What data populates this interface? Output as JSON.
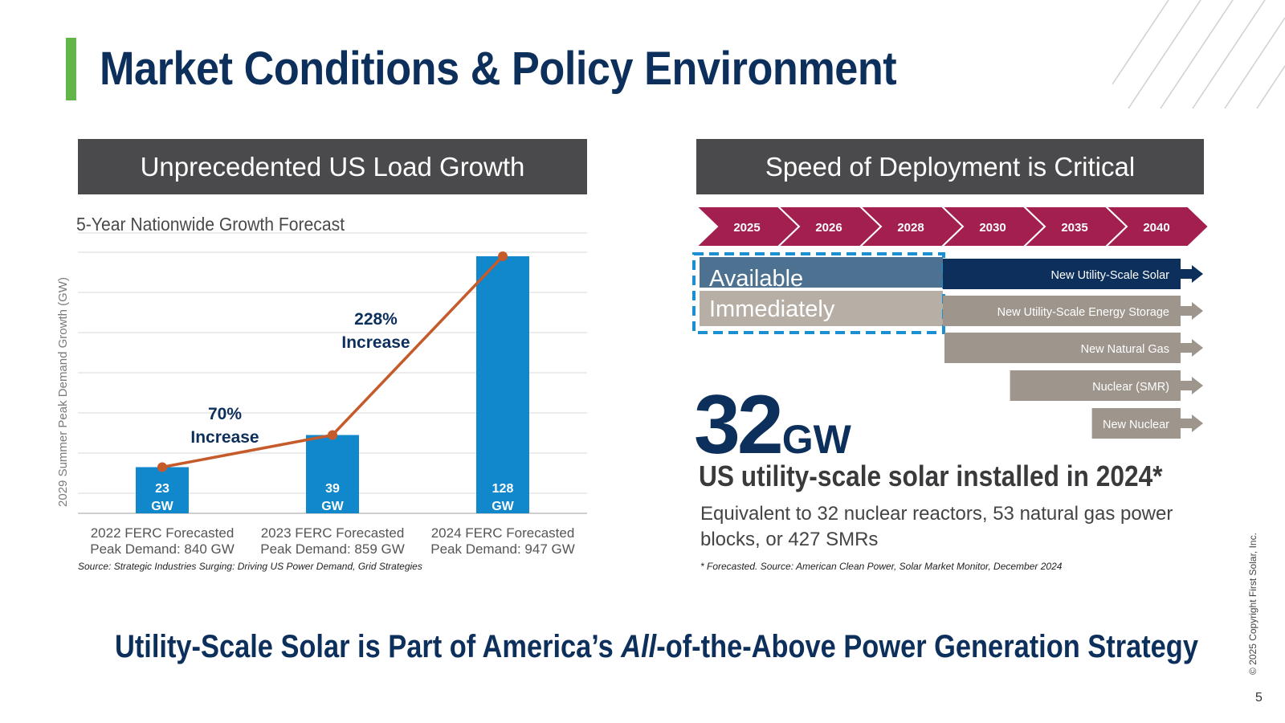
{
  "slide": {
    "title": "Market Conditions & Policy Environment",
    "tagline_pre": "Utility-Scale Solar is Part of America’s ",
    "tagline_em": "All",
    "tagline_post": "-of-the-Above Power Generation Strategy",
    "copyright": "© 2025 Copyright First Solar, Inc.",
    "page_number": "5",
    "colors": {
      "navy": "#0c2f5b",
      "green_accent": "#62b549",
      "header_gray": "#4a4a4c",
      "bar_blue": "#1188cc",
      "line_orange": "#c55a2a",
      "timeline_red": "#a21f4f"
    }
  },
  "left_panel": {
    "header": "Unprecedented US Load Growth",
    "source": "Source: Strategic Industries Surging: Driving US Power Demand, Grid Strategies"
  },
  "right_panel": {
    "header": "Speed of Deployment is Critical",
    "years": [
      "2025",
      "2026",
      "2028",
      "2030",
      "2035",
      "2040"
    ],
    "available_line1": "Available",
    "available_line2": "Immediately",
    "technologies": [
      {
        "name": "New Utility-Scale Solar",
        "start_year_index": 0,
        "style": "navy"
      },
      {
        "name": "New Utility-Scale Energy Storage",
        "start_year_index": 0,
        "style": "gray"
      },
      {
        "name": "New Natural Gas",
        "start_year_index": 3,
        "style": "gray"
      },
      {
        "name": "Nuclear (SMR)",
        "start_year_index": 3.8,
        "style": "gray"
      },
      {
        "name": "New Nuclear",
        "start_year_index": 4.8,
        "style": "gray"
      }
    ],
    "stat_number": "32",
    "stat_unit": "GW",
    "stat_label": "US utility-scale solar installed in 2024*",
    "stat_description": "Equivalent to 32 nuclear reactors, 53 natural gas power blocks, or 427 SMRs",
    "source": "* Forecasted. Source: American Clean Power, Solar Market Monitor, December 2024"
  },
  "chart_data": {
    "type": "bar",
    "title": "5-Year Nationwide Growth Forecast",
    "ylabel": "2029 Summer Peak Demand Growth (GW)",
    "xlabel": "",
    "ylim": [
      0,
      140
    ],
    "grid": true,
    "categories": [
      {
        "line1": "2022 FERC Forecasted",
        "line2": "Peak Demand: 840 GW"
      },
      {
        "line1": "2023 FERC Forecasted",
        "line2": "Peak Demand: 859 GW"
      },
      {
        "line1": "2024 FERC Forecasted",
        "line2": "Peak Demand: 947 GW"
      }
    ],
    "values": [
      23,
      39,
      128
    ],
    "value_labels": [
      {
        "num": "23",
        "unit": "GW"
      },
      {
        "num": "39",
        "unit": "GW"
      },
      {
        "num": "128",
        "unit": "GW"
      }
    ],
    "line_values": [
      23,
      39,
      128
    ],
    "annotations": [
      {
        "line1": "70%",
        "line2": "Increase",
        "between": [
          0,
          1
        ]
      },
      {
        "line1": "228%",
        "line2": "Increase",
        "between": [
          1,
          2
        ]
      }
    ]
  }
}
